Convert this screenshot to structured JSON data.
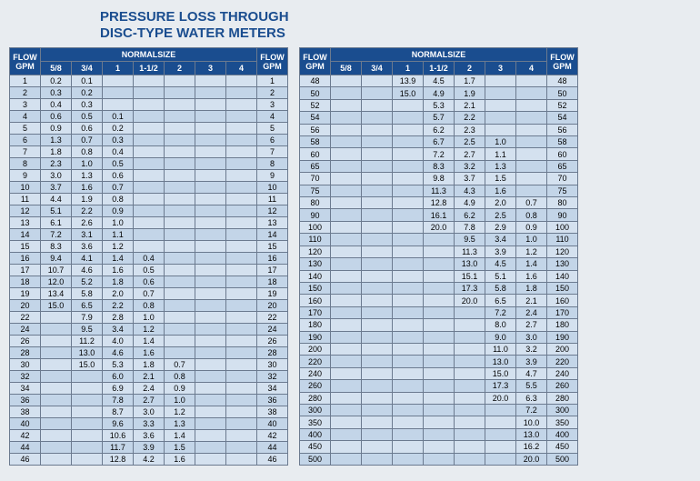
{
  "title_line1": "PRESSURE LOSS THROUGH",
  "title_line2": "DISC-TYPE WATER METERS",
  "header": {
    "flow": "FLOW",
    "gpm": "GPM",
    "normalsize": "NORMALSIZE",
    "sizes": [
      "5/8",
      "3/4",
      "1",
      "1-1/2",
      "2",
      "3",
      "4"
    ]
  },
  "colors": {
    "header_bg": "#1a4d8f",
    "header_fg": "#ffffff",
    "page_bg": "#e8ecf0",
    "row_odd": "#d4e1ef",
    "row_even": "#c3d5e8",
    "border": "#6b7a8f",
    "title": "#1a4d8f"
  },
  "table1": {
    "rows": [
      {
        "f": 1,
        "v": [
          "0.2",
          "0.1",
          "",
          "",
          "",
          "",
          ""
        ]
      },
      {
        "f": 2,
        "v": [
          "0.3",
          "0.2",
          "",
          "",
          "",
          "",
          ""
        ]
      },
      {
        "f": 3,
        "v": [
          "0.4",
          "0.3",
          "",
          "",
          "",
          "",
          ""
        ]
      },
      {
        "f": 4,
        "v": [
          "0.6",
          "0.5",
          "0.1",
          "",
          "",
          "",
          ""
        ]
      },
      {
        "f": 5,
        "v": [
          "0.9",
          "0.6",
          "0.2",
          "",
          "",
          "",
          ""
        ]
      },
      {
        "f": 6,
        "v": [
          "1.3",
          "0.7",
          "0.3",
          "",
          "",
          "",
          ""
        ]
      },
      {
        "f": 7,
        "v": [
          "1.8",
          "0.8",
          "0.4",
          "",
          "",
          "",
          ""
        ]
      },
      {
        "f": 8,
        "v": [
          "2.3",
          "1.0",
          "0.5",
          "",
          "",
          "",
          ""
        ]
      },
      {
        "f": 9,
        "v": [
          "3.0",
          "1.3",
          "0.6",
          "",
          "",
          "",
          ""
        ]
      },
      {
        "f": 10,
        "v": [
          "3.7",
          "1.6",
          "0.7",
          "",
          "",
          "",
          ""
        ]
      },
      {
        "f": 11,
        "v": [
          "4.4",
          "1.9",
          "0.8",
          "",
          "",
          "",
          ""
        ]
      },
      {
        "f": 12,
        "v": [
          "5.1",
          "2.2",
          "0.9",
          "",
          "",
          "",
          ""
        ]
      },
      {
        "f": 13,
        "v": [
          "6.1",
          "2.6",
          "1.0",
          "",
          "",
          "",
          ""
        ]
      },
      {
        "f": 14,
        "v": [
          "7.2",
          "3.1",
          "1.1",
          "",
          "",
          "",
          ""
        ]
      },
      {
        "f": 15,
        "v": [
          "8.3",
          "3.6",
          "1.2",
          "",
          "",
          "",
          ""
        ]
      },
      {
        "f": 16,
        "v": [
          "9.4",
          "4.1",
          "1.4",
          "0.4",
          "",
          "",
          ""
        ]
      },
      {
        "f": 17,
        "v": [
          "10.7",
          "4.6",
          "1.6",
          "0.5",
          "",
          "",
          ""
        ]
      },
      {
        "f": 18,
        "v": [
          "12.0",
          "5.2",
          "1.8",
          "0.6",
          "",
          "",
          ""
        ]
      },
      {
        "f": 19,
        "v": [
          "13.4",
          "5.8",
          "2.0",
          "0.7",
          "",
          "",
          ""
        ]
      },
      {
        "f": 20,
        "v": [
          "15.0",
          "6.5",
          "2.2",
          "0.8",
          "",
          "",
          ""
        ]
      },
      {
        "f": 22,
        "v": [
          "",
          "7.9",
          "2.8",
          "1.0",
          "",
          "",
          ""
        ]
      },
      {
        "f": 24,
        "v": [
          "",
          "9.5",
          "3.4",
          "1.2",
          "",
          "",
          ""
        ]
      },
      {
        "f": 26,
        "v": [
          "",
          "11.2",
          "4.0",
          "1.4",
          "",
          "",
          ""
        ]
      },
      {
        "f": 28,
        "v": [
          "",
          "13.0",
          "4.6",
          "1.6",
          "",
          "",
          ""
        ]
      },
      {
        "f": 30,
        "v": [
          "",
          "15.0",
          "5.3",
          "1.8",
          "0.7",
          "",
          ""
        ]
      },
      {
        "f": 32,
        "v": [
          "",
          "",
          "6.0",
          "2.1",
          "0.8",
          "",
          ""
        ]
      },
      {
        "f": 34,
        "v": [
          "",
          "",
          "6.9",
          "2.4",
          "0.9",
          "",
          ""
        ]
      },
      {
        "f": 36,
        "v": [
          "",
          "",
          "7.8",
          "2.7",
          "1.0",
          "",
          ""
        ]
      },
      {
        "f": 38,
        "v": [
          "",
          "",
          "8.7",
          "3.0",
          "1.2",
          "",
          ""
        ]
      },
      {
        "f": 40,
        "v": [
          "",
          "",
          "9.6",
          "3.3",
          "1.3",
          "",
          ""
        ]
      },
      {
        "f": 42,
        "v": [
          "",
          "",
          "10.6",
          "3.6",
          "1.4",
          "",
          ""
        ]
      },
      {
        "f": 44,
        "v": [
          "",
          "",
          "11.7",
          "3.9",
          "1.5",
          "",
          ""
        ]
      },
      {
        "f": 46,
        "v": [
          "",
          "",
          "12.8",
          "4.2",
          "1.6",
          "",
          ""
        ]
      }
    ]
  },
  "table2": {
    "rows": [
      {
        "f": 48,
        "v": [
          "",
          "",
          "13.9",
          "4.5",
          "1.7",
          "",
          ""
        ]
      },
      {
        "f": 50,
        "v": [
          "",
          "",
          "15.0",
          "4.9",
          "1.9",
          "",
          ""
        ]
      },
      {
        "f": 52,
        "v": [
          "",
          "",
          "",
          "5.3",
          "2.1",
          "",
          ""
        ]
      },
      {
        "f": 54,
        "v": [
          "",
          "",
          "",
          "5.7",
          "2.2",
          "",
          ""
        ]
      },
      {
        "f": 56,
        "v": [
          "",
          "",
          "",
          "6.2",
          "2.3",
          "",
          ""
        ]
      },
      {
        "f": 58,
        "v": [
          "",
          "",
          "",
          "6.7",
          "2.5",
          "1.0",
          ""
        ]
      },
      {
        "f": 60,
        "v": [
          "",
          "",
          "",
          "7.2",
          "2.7",
          "1.1",
          ""
        ]
      },
      {
        "f": 65,
        "v": [
          "",
          "",
          "",
          "8.3",
          "3.2",
          "1.3",
          ""
        ]
      },
      {
        "f": 70,
        "v": [
          "",
          "",
          "",
          "9.8",
          "3.7",
          "1.5",
          ""
        ]
      },
      {
        "f": 75,
        "v": [
          "",
          "",
          "",
          "11.3",
          "4.3",
          "1.6",
          ""
        ]
      },
      {
        "f": 80,
        "v": [
          "",
          "",
          "",
          "12.8",
          "4.9",
          "2.0",
          "0.7"
        ]
      },
      {
        "f": 90,
        "v": [
          "",
          "",
          "",
          "16.1",
          "6.2",
          "2.5",
          "0.8"
        ]
      },
      {
        "f": 100,
        "v": [
          "",
          "",
          "",
          "20.0",
          "7.8",
          "2.9",
          "0.9"
        ]
      },
      {
        "f": 110,
        "v": [
          "",
          "",
          "",
          "",
          "9.5",
          "3.4",
          "1.0"
        ]
      },
      {
        "f": 120,
        "v": [
          "",
          "",
          "",
          "",
          "11.3",
          "3.9",
          "1.2"
        ]
      },
      {
        "f": 130,
        "v": [
          "",
          "",
          "",
          "",
          "13.0",
          "4.5",
          "1.4"
        ]
      },
      {
        "f": 140,
        "v": [
          "",
          "",
          "",
          "",
          "15.1",
          "5.1",
          "1.6"
        ]
      },
      {
        "f": 150,
        "v": [
          "",
          "",
          "",
          "",
          "17.3",
          "5.8",
          "1.8"
        ]
      },
      {
        "f": 160,
        "v": [
          "",
          "",
          "",
          "",
          "20.0",
          "6.5",
          "2.1"
        ]
      },
      {
        "f": 170,
        "v": [
          "",
          "",
          "",
          "",
          "",
          "7.2",
          "2.4"
        ]
      },
      {
        "f": 180,
        "v": [
          "",
          "",
          "",
          "",
          "",
          "8.0",
          "2.7"
        ]
      },
      {
        "f": 190,
        "v": [
          "",
          "",
          "",
          "",
          "",
          "9.0",
          "3.0"
        ]
      },
      {
        "f": 200,
        "v": [
          "",
          "",
          "",
          "",
          "",
          "11.0",
          "3.2"
        ]
      },
      {
        "f": 220,
        "v": [
          "",
          "",
          "",
          "",
          "",
          "13.0",
          "3.9"
        ]
      },
      {
        "f": 240,
        "v": [
          "",
          "",
          "",
          "",
          "",
          "15.0",
          "4.7"
        ]
      },
      {
        "f": 260,
        "v": [
          "",
          "",
          "",
          "",
          "",
          "17.3",
          "5.5"
        ]
      },
      {
        "f": 280,
        "v": [
          "",
          "",
          "",
          "",
          "",
          "20.0",
          "6.3"
        ]
      },
      {
        "f": 300,
        "v": [
          "",
          "",
          "",
          "",
          "",
          "",
          "7.2"
        ]
      },
      {
        "f": 350,
        "v": [
          "",
          "",
          "",
          "",
          "",
          "",
          "10.0"
        ]
      },
      {
        "f": 400,
        "v": [
          "",
          "",
          "",
          "",
          "",
          "",
          "13.0"
        ]
      },
      {
        "f": 450,
        "v": [
          "",
          "",
          "",
          "",
          "",
          "",
          "16.2"
        ]
      },
      {
        "f": 500,
        "v": [
          "",
          "",
          "",
          "",
          "",
          "",
          "20.0"
        ]
      }
    ]
  }
}
